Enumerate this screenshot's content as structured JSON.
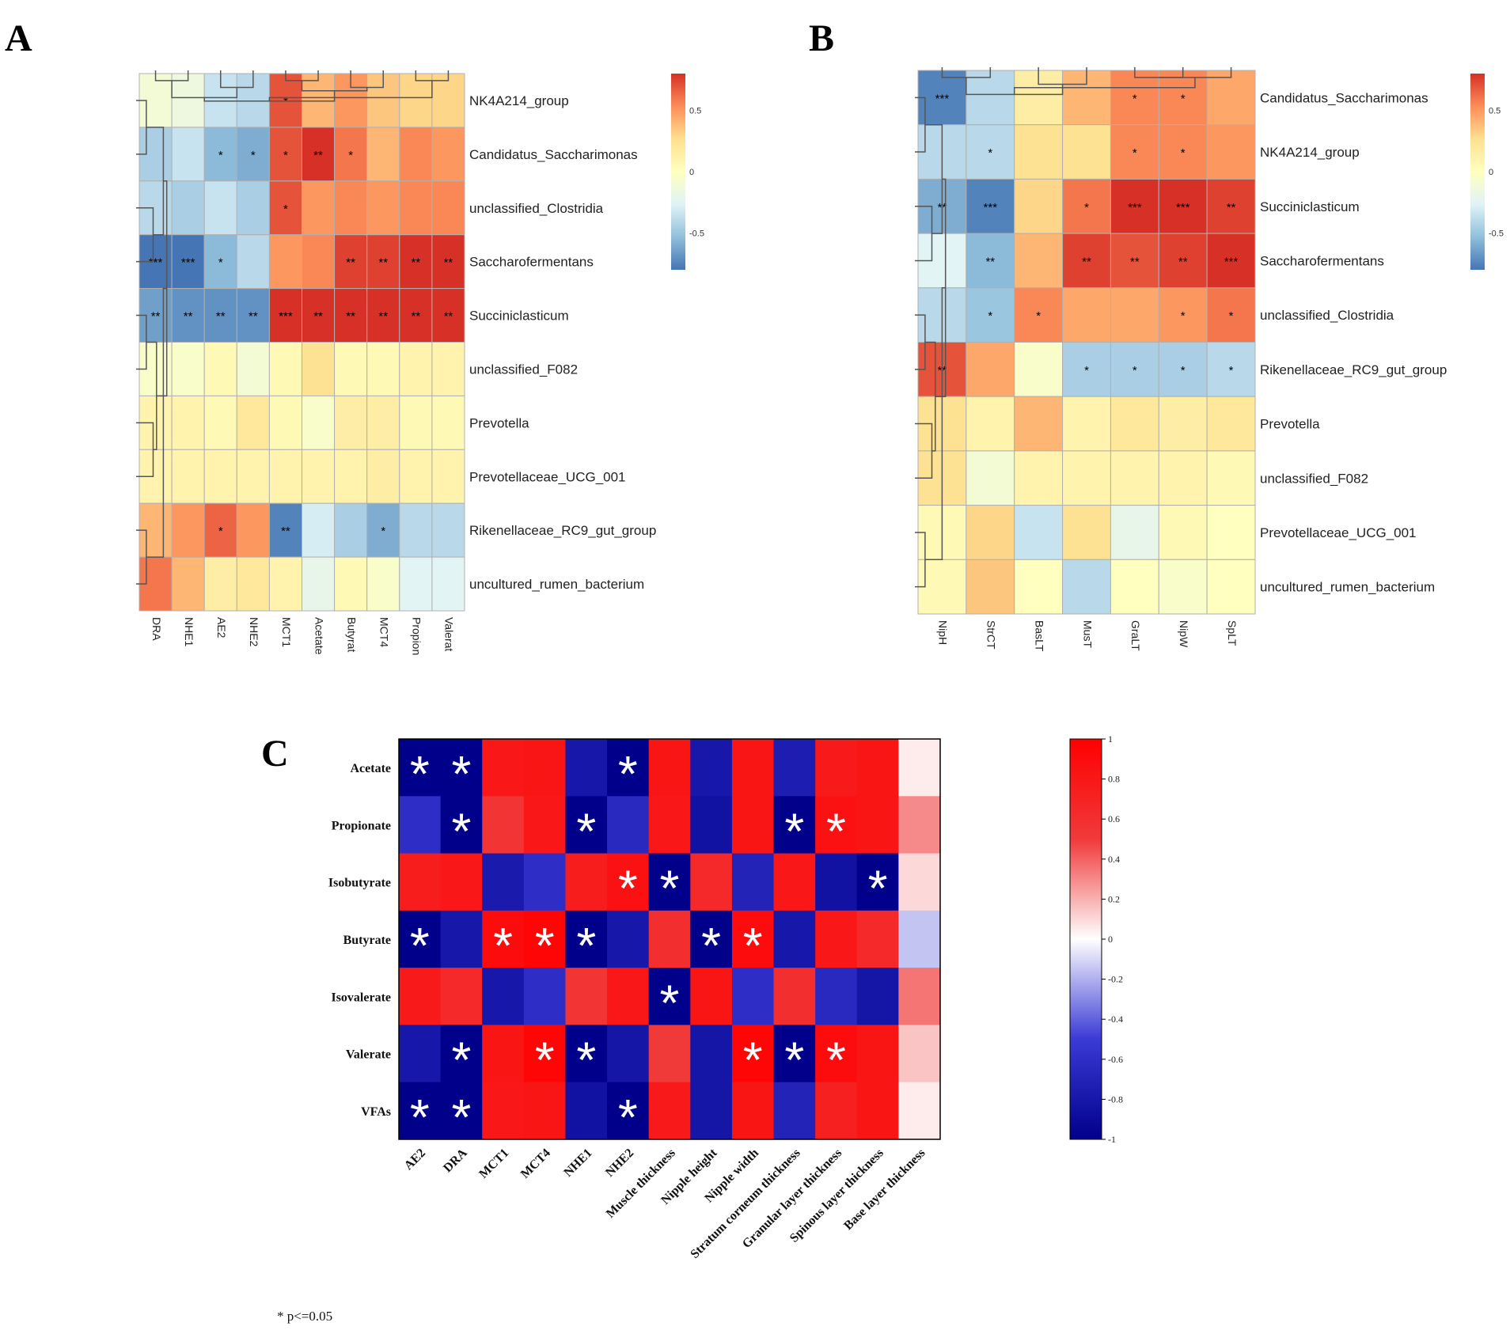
{
  "chart_data": [
    {
      "panel": "A",
      "type": "heatmap",
      "panel_label": "A",
      "rows": [
        "NK4A214_group",
        "Candidatus_Saccharimonas",
        "unclassified_Clostridia",
        "Saccharofermentans",
        "Succiniclasticum",
        "unclassified_F082",
        "Prevotella",
        "Prevotellaceae_UCG_001",
        "Rikenellaceae_RC9_gut_group",
        "uncultured_rumen_bacterium"
      ],
      "columns": [
        "DRA",
        "NHE1",
        "AE2",
        "NHE2",
        "MCT1",
        "Acetate",
        "Butyrat",
        "MCT4",
        "Propion",
        "Valerat"
      ],
      "values": [
        [
          -0.1,
          -0.15,
          -0.35,
          -0.4,
          0.7,
          0.4,
          0.5,
          0.35,
          0.3,
          0.3
        ],
        [
          -0.45,
          -0.35,
          -0.55,
          -0.6,
          0.7,
          0.8,
          0.6,
          0.4,
          0.55,
          0.5
        ],
        [
          -0.4,
          -0.45,
          -0.35,
          -0.45,
          0.7,
          0.5,
          0.55,
          0.5,
          0.55,
          0.55
        ],
        [
          -0.8,
          -0.8,
          -0.55,
          -0.4,
          0.5,
          0.55,
          0.75,
          0.75,
          0.85,
          0.85
        ],
        [
          -0.65,
          -0.7,
          -0.7,
          -0.7,
          0.95,
          0.8,
          0.8,
          0.85,
          0.85,
          0.85
        ],
        [
          -0.05,
          -0.05,
          0.05,
          -0.1,
          0.05,
          0.25,
          0.05,
          0.05,
          0.1,
          0.1
        ],
        [
          0.1,
          0.1,
          0.05,
          0.2,
          0.05,
          -0.05,
          0.15,
          0.15,
          0.05,
          0.05
        ],
        [
          0.1,
          0.1,
          0.1,
          0.1,
          0.1,
          0.1,
          0.1,
          0.15,
          0.1,
          0.1
        ],
        [
          0.4,
          0.5,
          0.65,
          0.5,
          -0.75,
          -0.3,
          -0.45,
          -0.6,
          -0.4,
          -0.4
        ],
        [
          0.6,
          0.4,
          0.15,
          0.2,
          0.1,
          -0.2,
          0.05,
          -0.05,
          -0.25,
          -0.25
        ]
      ],
      "stars": [
        [
          "",
          "",
          "",
          "",
          "*",
          "",
          "",
          "",
          "",
          ""
        ],
        [
          "",
          "",
          "*",
          "*",
          "*",
          "**",
          "*",
          "",
          "",
          ""
        ],
        [
          "",
          "",
          "",
          "",
          "*",
          "",
          "",
          "",
          "",
          ""
        ],
        [
          "***",
          "***",
          "*",
          "",
          "",
          "",
          "**",
          "**",
          "**",
          "**"
        ],
        [
          "**",
          "**",
          "**",
          "**",
          "***",
          "**",
          "**",
          "**",
          "**",
          "**"
        ],
        [
          "",
          "",
          "",
          "",
          "",
          "",
          "",
          "",
          "",
          ""
        ],
        [
          "",
          "",
          "",
          "",
          "",
          "",
          "",
          "",
          "",
          ""
        ],
        [
          "",
          "",
          "",
          "",
          "",
          "",
          "",
          "",
          "",
          ""
        ],
        [
          "",
          "",
          "*",
          "",
          "**",
          "",
          "",
          "*",
          "",
          ""
        ],
        [
          "",
          "",
          "",
          "",
          "",
          "",
          "",
          "",
          "",
          ""
        ]
      ],
      "colorbar_ticks": [
        "0.5",
        "0",
        "-0.5"
      ],
      "colorbar_range": [
        -0.8,
        0.8
      ]
    },
    {
      "panel": "B",
      "type": "heatmap",
      "panel_label": "B",
      "rows": [
        "Candidatus_Saccharimonas",
        "NK4A214_group",
        "Succiniclasticum",
        "Saccharofermentans",
        "unclassified_Clostridia",
        "Rikenellaceae_RC9_gut_group",
        "Prevotella",
        "unclassified_F082",
        "Prevotellaceae_UCG_001",
        "uncultured_rumen_bacterium"
      ],
      "columns": [
        "NipH",
        "StrCT",
        "BasLT",
        "MusT",
        "GraLT",
        "NipW",
        "SpLT"
      ],
      "values": [
        [
          -0.75,
          -0.4,
          0.15,
          0.4,
          0.55,
          0.55,
          0.45
        ],
        [
          -0.4,
          -0.4,
          0.25,
          0.25,
          0.55,
          0.55,
          0.5
        ],
        [
          -0.6,
          -0.75,
          0.3,
          0.6,
          0.9,
          0.85,
          0.75
        ],
        [
          -0.25,
          -0.55,
          0.4,
          0.75,
          0.7,
          0.75,
          0.9
        ],
        [
          -0.4,
          -0.5,
          0.55,
          0.45,
          0.45,
          0.5,
          0.6
        ],
        [
          0.7,
          0.45,
          -0.05,
          -0.45,
          -0.45,
          -0.45,
          -0.4
        ],
        [
          0.25,
          0.1,
          0.4,
          0.1,
          0.2,
          0.15,
          0.2
        ],
        [
          0.25,
          -0.1,
          0.1,
          0.1,
          0.1,
          0.1,
          0.05
        ],
        [
          0.05,
          0.3,
          -0.35,
          0.25,
          -0.2,
          0.05,
          0.0
        ],
        [
          0.05,
          0.35,
          0.0,
          -0.4,
          0.0,
          -0.05,
          0.0
        ]
      ],
      "stars": [
        [
          "***",
          "",
          "",
          "",
          "*",
          "*",
          ""
        ],
        [
          "",
          "*",
          "",
          "",
          "*",
          "*",
          ""
        ],
        [
          "**",
          "***",
          "",
          "*",
          "***",
          "***",
          "**"
        ],
        [
          "",
          "**",
          "",
          "**",
          "**",
          "**",
          "***"
        ],
        [
          "",
          "*",
          "*",
          "",
          "",
          "*",
          "*"
        ],
        [
          "**",
          "",
          "",
          "*",
          "*",
          "*",
          "*"
        ],
        [
          "",
          "",
          "",
          "",
          "",
          "",
          ""
        ],
        [
          "",
          "",
          "",
          "",
          "",
          "",
          ""
        ],
        [
          "",
          "",
          "",
          "",
          "",
          "",
          ""
        ],
        [
          "",
          "",
          "",
          "",
          "",
          "",
          ""
        ]
      ],
      "colorbar_ticks": [
        "0.5",
        "0",
        "-0.5"
      ],
      "colorbar_range": [
        -0.8,
        0.8
      ]
    },
    {
      "panel": "C",
      "type": "heatmap",
      "panel_label": "C",
      "rows": [
        "Acetate",
        "Propionate",
        "Isobutyrate",
        "Butyrate",
        "Isovalerate",
        "Valerate",
        "VFAs"
      ],
      "columns": [
        "AE2",
        "DRA",
        "MCT1",
        "MCT4",
        "NHE1",
        "NHE2",
        "Muscle thickness",
        "Nipple height",
        "Nipple width",
        "Stratum corneum thickness",
        "Granular layer thickness",
        "Spinous layer thickness",
        "Base layer thickness"
      ],
      "values": [
        [
          -1.0,
          -1.0,
          0.8,
          0.82,
          -0.8,
          -1.0,
          0.82,
          -0.8,
          0.82,
          -0.75,
          0.78,
          0.82,
          0.05
        ],
        [
          -0.6,
          -1.0,
          0.55,
          0.8,
          -1.0,
          -0.65,
          0.8,
          -0.85,
          0.82,
          -1.0,
          0.85,
          0.82,
          0.3
        ],
        [
          0.75,
          0.8,
          -0.78,
          -0.6,
          0.75,
          0.85,
          -1.0,
          0.65,
          -0.7,
          0.8,
          -0.85,
          -1.0,
          0.1
        ],
        [
          -1.0,
          -0.8,
          0.9,
          0.95,
          -1.0,
          -0.8,
          0.6,
          -1.0,
          0.9,
          -0.8,
          0.8,
          0.65,
          -0.15
        ],
        [
          0.78,
          0.65,
          -0.8,
          -0.6,
          0.55,
          0.8,
          -1.0,
          0.82,
          -0.6,
          0.6,
          -0.65,
          -0.82,
          0.35
        ],
        [
          -0.8,
          -1.0,
          0.82,
          0.95,
          -1.0,
          -0.82,
          0.5,
          -0.82,
          0.95,
          -1.0,
          0.9,
          0.82,
          0.15
        ],
        [
          -1.0,
          -1.0,
          0.8,
          0.82,
          -0.85,
          -1.0,
          0.78,
          -0.82,
          0.82,
          -0.7,
          0.72,
          0.82,
          0.05
        ]
      ],
      "stars": [
        [
          "*",
          "*",
          "",
          "",
          "",
          "*",
          "",
          "",
          "",
          "",
          "",
          "",
          ""
        ],
        [
          "",
          "*",
          "",
          "",
          "*",
          "",
          "",
          "",
          "",
          "*",
          "*",
          "",
          ""
        ],
        [
          "",
          "",
          "",
          "",
          "",
          "*",
          "*",
          "",
          "",
          "",
          "",
          "*",
          ""
        ],
        [
          "*",
          "",
          "*",
          "*",
          "*",
          "",
          "",
          "*",
          "*",
          "",
          "",
          "",
          ""
        ],
        [
          "",
          "",
          "",
          "",
          "",
          "",
          "*",
          "",
          "",
          "",
          "",
          "",
          ""
        ],
        [
          "",
          "*",
          "",
          "*",
          "*",
          "",
          "",
          "",
          "*",
          "*",
          "*",
          "",
          ""
        ],
        [
          "*",
          "*",
          "",
          "",
          "",
          "*",
          "",
          "",
          "",
          "",
          "",
          "",
          ""
        ]
      ],
      "colorbar_ticks": [
        "1",
        "0.8",
        "0.6",
        "0.4",
        "0.2",
        "0",
        "-0.2",
        "-0.4",
        "-0.6",
        "-0.8",
        "-1"
      ],
      "colorbar_range": [
        -1,
        1
      ],
      "footnote": "* p<=0.05"
    }
  ]
}
